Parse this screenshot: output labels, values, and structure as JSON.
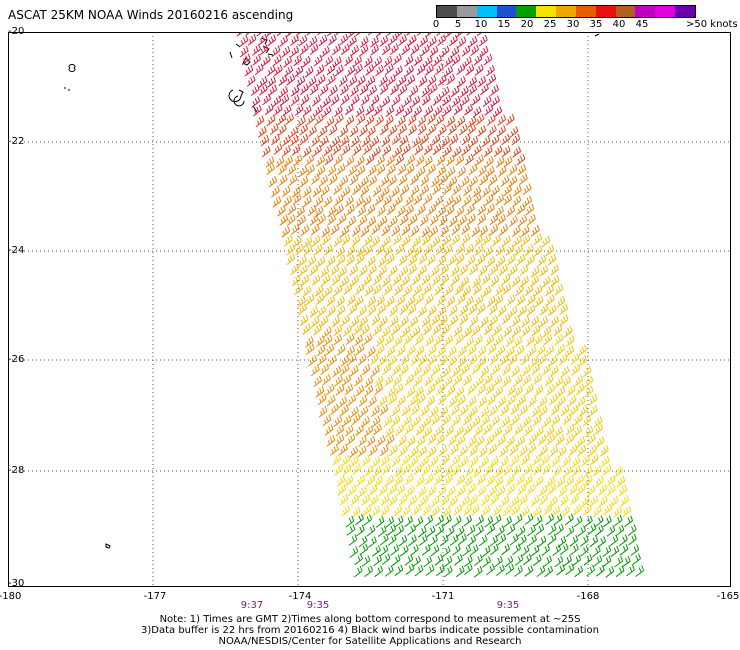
{
  "header": {
    "title": "ASCAT 25KM NOAA Winds 20160216 ascending"
  },
  "legend": {
    "colors": [
      "#4d4d4d",
      "#9a9a9a",
      "#00bfff",
      "#1f4fd6",
      "#00a000",
      "#f2e400",
      "#f0a500",
      "#e85d00",
      "#e81010",
      "#b06020",
      "#c000c0",
      "#e000e0",
      "#6a00a8"
    ],
    "labels": [
      "0",
      "5",
      "10",
      "15",
      "20",
      "25",
      "30",
      "35",
      "40",
      "45",
      ">50 knots"
    ]
  },
  "map": {
    "lat_labels": [
      "-20",
      "-22",
      "-24",
      "-26",
      "-28",
      "-30"
    ],
    "lon_labels": [
      "-180",
      "-177",
      "-174",
      "-171",
      "-168",
      "-165"
    ],
    "times": [
      "9:37",
      "9:35",
      "9:35"
    ]
  },
  "notes": {
    "line1": "Note: 1) Times are GMT 2)Times along bottom correspond to measurement at ~25S",
    "line2": "3)Data buffer is 22 hrs from 20160216 4) Black wind barbs indicate possible contamination",
    "line3": "NOAA/NESDIS/Center for Satellite Applications and Research"
  }
}
